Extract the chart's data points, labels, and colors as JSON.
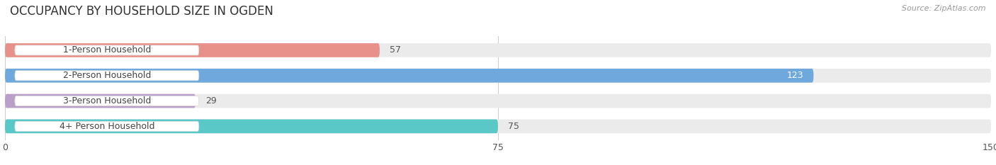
{
  "title": "OCCUPANCY BY HOUSEHOLD SIZE IN OGDEN",
  "source": "Source: ZipAtlas.com",
  "categories": [
    "1-Person Household",
    "2-Person Household",
    "3-Person Household",
    "4+ Person Household"
  ],
  "values": [
    57,
    123,
    29,
    75
  ],
  "bar_colors": [
    "#E8918A",
    "#6FA8DC",
    "#B8A0C8",
    "#5BC8C8"
  ],
  "value_text_colors": [
    "#555555",
    "#ffffff",
    "#555555",
    "#555555"
  ],
  "xlim": [
    0,
    150
  ],
  "xticks": [
    0,
    75,
    150
  ],
  "background_color": "#ffffff",
  "bar_bg_color": "#ebebeb",
  "title_fontsize": 12,
  "label_fontsize": 9,
  "value_fontsize": 9,
  "source_fontsize": 8
}
